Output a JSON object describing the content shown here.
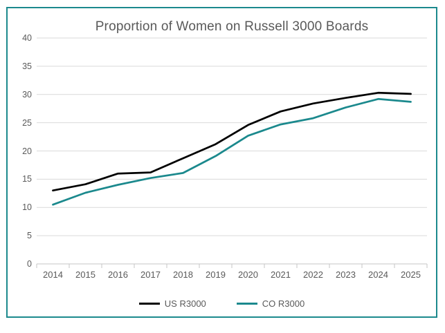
{
  "chart_data": {
    "type": "line",
    "title": "Proportion of Women on Russell 3000 Boards",
    "categories": [
      "2014",
      "2015",
      "2016",
      "2017",
      "2018",
      "2019",
      "2020",
      "2021",
      "2022",
      "2023",
      "2024",
      "2025"
    ],
    "series": [
      {
        "name": "US R3000",
        "color": "#000000",
        "values": [
          13.0,
          14.1,
          16.0,
          16.2,
          18.7,
          21.2,
          24.6,
          27.0,
          28.4,
          29.4,
          30.3,
          30.1
        ]
      },
      {
        "name": "CO R3000",
        "color": "#1B898D",
        "values": [
          10.5,
          12.6,
          14.0,
          15.2,
          16.1,
          19.1,
          22.7,
          24.7,
          25.8,
          27.7,
          29.2,
          28.7
        ]
      }
    ],
    "xlabel": "",
    "ylabel": "",
    "ylim": [
      0,
      40
    ],
    "ytick_step": 5,
    "ytick_labels": [
      "0",
      "5",
      "10",
      "15",
      "20",
      "25",
      "30",
      "35",
      "40"
    ],
    "grid": "horizontal",
    "legend_position": "bottom-center"
  },
  "frame": {
    "border_color": "#1B898D",
    "gridline_color": "#D9D9D9",
    "axis_color": "#C6C6C6",
    "text_color": "#595959",
    "background": "#FFFFFF"
  }
}
